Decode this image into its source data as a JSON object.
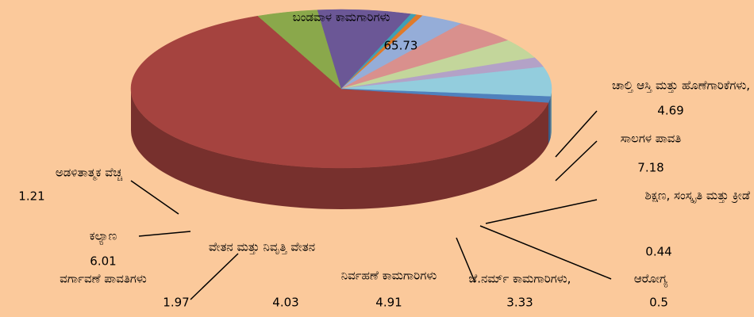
{
  "chart_data": {
    "type": "pie",
    "three_d": true,
    "categories": [
      "ಬಂಡವಾಳ ಕಾಮಗಾರಿಗಳು",
      "ಚಾಲ್ತಿ ಆಸ್ತಿ ಮತ್ತು ಹೊಣೆಗಾರಿಕೆಗಳು,",
      "ಸಾಲಗಳ ಪಾವತಿ",
      "ಶಿಕ್ಷಣ, ಸಂಸ್ಕೃತಿ ಮತ್ತು ಕ್ರೀಡೆ",
      "ಆರೋಗ್ಯ",
      "ಜೆ.ನರ್ಮ್ ಕಾಮಗಾರಿಗಳು,",
      "ನಿರ್ವಹಣೆ ಕಾಮಗಾರಿಗಳು",
      "ವೇತನ ಮತ್ತು ನಿವೃತ್ತಿ ವೇತನ",
      "ವರ್ಗಾವಣೆ ಪಾವತಿಗಳು",
      "ಕಲ್ಯಾಣ",
      "ಅಡಳಿತಾತ್ಮಕ ವೆಚ್ಚ"
    ],
    "values": [
      65.73,
      4.69,
      7.18,
      0.44,
      0.5,
      3.33,
      4.91,
      4.03,
      1.97,
      6.01,
      1.21
    ],
    "colors": [
      "#a5433f",
      "#8aa84b",
      "#6b5796",
      "#3f9fb5",
      "#e07a2a",
      "#95add8",
      "#d9908d",
      "#c3d69b",
      "#b3a2c7",
      "#93cddd",
      "#4f81bd"
    ]
  }
}
